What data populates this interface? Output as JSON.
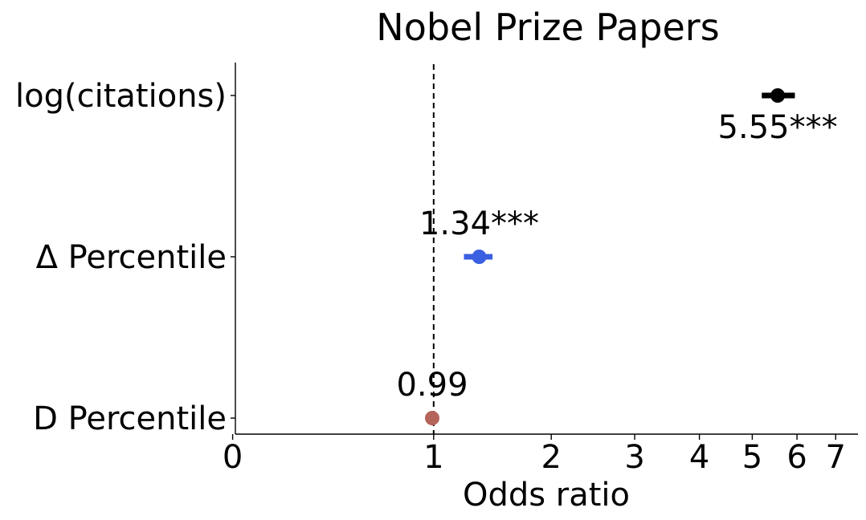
{
  "chart_data": {
    "type": "forest",
    "title": "Nobel Prize Papers",
    "xlabel": "Odds ratio",
    "ylabel": "",
    "x_scale": "log(x+1)",
    "xlim": [
      -0.1,
      7.4
    ],
    "x_ticks": [
      0,
      1,
      2,
      3,
      4,
      5,
      6,
      7
    ],
    "x_tick_labels": [
      "0",
      "1",
      "2",
      "3",
      "4",
      "5",
      "6",
      "7"
    ],
    "reference_line": 1,
    "categories": [
      "log(citations)",
      "Δ Percentile",
      "D Percentile"
    ],
    "points": [
      {
        "category": "log(citations)",
        "value": 5.55,
        "ci": [
          5.2,
          5.95
        ],
        "label": "5.55***",
        "label_position": "below",
        "color": "#000000"
      },
      {
        "category": "Δ Percentile",
        "value": 1.34,
        "ci": [
          1.22,
          1.45
        ],
        "label": "1.34***",
        "label_position": "above",
        "color": "#3a5fe0"
      },
      {
        "category": "D Percentile",
        "value": 0.99,
        "ci": [
          0.95,
          1.03
        ],
        "label": "0.99",
        "label_position": "above",
        "color": "#b5645a"
      }
    ],
    "grid": false,
    "legend": "none"
  }
}
